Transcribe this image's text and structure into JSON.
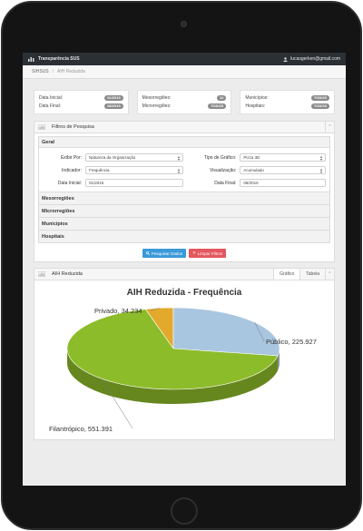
{
  "topbar": {
    "brand": "Transparência SUS",
    "user_email": "lucasgerken@gmail.com"
  },
  "breadcrumb": {
    "root": "SIHSUS",
    "separator": "/",
    "current": "AIH Reduzida"
  },
  "summary": {
    "box1": [
      {
        "label": "Data Inicial:",
        "value": "01/2015"
      },
      {
        "label": "Data Final:",
        "value": "08/2015"
      }
    ],
    "box2": [
      {
        "label": "Mesorregiões:",
        "value": "12"
      },
      {
        "label": "Microrregiões:",
        "value": "TODOS"
      }
    ],
    "box3": [
      {
        "label": "Municípios:",
        "value": "TODOS"
      },
      {
        "label": "Hospitais:",
        "value": "TODOS"
      }
    ]
  },
  "filters": {
    "title": "Filtros de Pesquisa",
    "collapse_icon": "chevron-up-icon",
    "group_title": "Geral",
    "exibir_por": {
      "label": "Exibir Por:",
      "value": "Natureza da Organização"
    },
    "tipo_grafico": {
      "label": "Tipo de Gráfico:",
      "value": "Pizza 3D"
    },
    "indicador": {
      "label": "Indicador:",
      "value": "Frequência"
    },
    "visualizacao": {
      "label": "Visualização:",
      "value": "Acumulado"
    },
    "data_inicial": {
      "label": "Data Inicial:",
      "value": "01/2015"
    },
    "data_final": {
      "label": "Data Final:",
      "value": "08/2015"
    },
    "sections": [
      "Mesorregiões",
      "Microrregiões",
      "Municípios",
      "Hospitais"
    ],
    "search_button": "Pesquisar Dados",
    "search_icon": "search-icon",
    "clear_button": "Limpar Filtros",
    "clear_icon": "close-icon"
  },
  "chart_panel": {
    "title": "AIH Reduzida",
    "tabs": [
      "Gráfico",
      "Tabela"
    ],
    "active_tab": "Gráfico"
  },
  "chart_data": {
    "type": "pie",
    "title": "AIH Reduzida - Frequência",
    "style": "3d",
    "slices": [
      {
        "name": "Privado",
        "value": 34.234,
        "label": "Privado, 34.234",
        "color": "#e2a92c"
      },
      {
        "name": "Público",
        "value": 225.927,
        "label": "Público, 225.927",
        "color": "#a9c6e0"
      },
      {
        "name": "Filantrópico",
        "value": 551.391,
        "label": "Filantrópico, 551.391",
        "color": "#8dbc2a"
      }
    ]
  }
}
